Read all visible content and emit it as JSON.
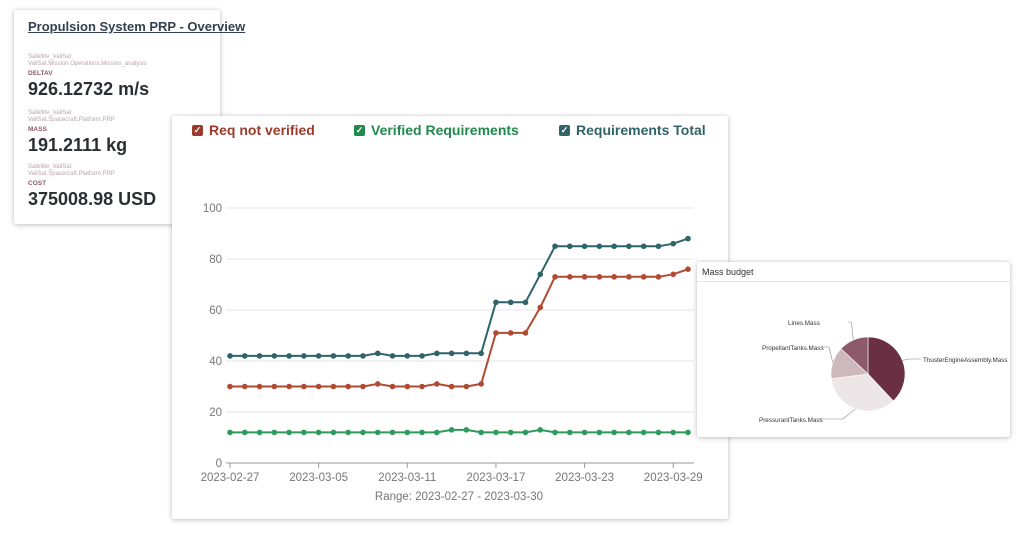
{
  "overview": {
    "title": "Propulsion System PRP - Overview",
    "metrics": [
      {
        "path1": "Satellite_ValiSat",
        "path2": "ValiSat.Mission Operations.Mission_analysis",
        "label": "DELTAV",
        "value": "926.12732 m/s"
      },
      {
        "path1": "Satellite_ValiSat",
        "path2": "ValiSat.Spacecraft.Platform.PRP",
        "label": "MASS",
        "value": "191.2111 kg"
      },
      {
        "path1": "Satellite_ValiSat",
        "path2": "ValiSat.Spacecraft.Platform.PRP",
        "label": "COST",
        "value": "375008.98 USD"
      }
    ]
  },
  "legend": [
    {
      "label": "Req not verified",
      "color": "#9b3b2b",
      "checked": true
    },
    {
      "label": "Verified Requirements",
      "color": "#1f8a4c",
      "checked": true
    },
    {
      "label": "Requirements Total",
      "color": "#2f6468",
      "checked": true
    }
  ],
  "chart_data": [
    {
      "type": "line",
      "x": [
        "2023-02-27",
        "2023-02-28",
        "2023-03-01",
        "2023-03-02",
        "2023-03-03",
        "2023-03-04",
        "2023-03-05",
        "2023-03-06",
        "2023-03-07",
        "2023-03-08",
        "2023-03-09",
        "2023-03-10",
        "2023-03-11",
        "2023-03-12",
        "2023-03-13",
        "2023-03-14",
        "2023-03-15",
        "2023-03-16",
        "2023-03-17",
        "2023-03-18",
        "2023-03-19",
        "2023-03-20",
        "2023-03-21",
        "2023-03-22",
        "2023-03-23",
        "2023-03-24",
        "2023-03-25",
        "2023-03-26",
        "2023-03-27",
        "2023-03-28",
        "2023-03-29",
        "2023-03-30"
      ],
      "series": [
        {
          "name": "Requirements Total",
          "color": "#2f6468",
          "values": [
            42,
            42,
            42,
            42,
            42,
            42,
            42,
            42,
            42,
            42,
            43,
            42,
            42,
            42,
            43,
            43,
            43,
            43,
            63,
            63,
            63,
            74,
            85,
            85,
            85,
            85,
            85,
            85,
            85,
            85,
            86,
            88
          ]
        },
        {
          "name": "Req not verified",
          "color": "#b04a33",
          "values": [
            30,
            30,
            30,
            30,
            30,
            30,
            30,
            30,
            30,
            30,
            31,
            30,
            30,
            30,
            31,
            30,
            30,
            31,
            51,
            51,
            51,
            61,
            73,
            73,
            73,
            73,
            73,
            73,
            73,
            73,
            74,
            76
          ]
        },
        {
          "name": "Verified Requirements",
          "color": "#2e9a5c",
          "values": [
            12,
            12,
            12,
            12,
            12,
            12,
            12,
            12,
            12,
            12,
            12,
            12,
            12,
            12,
            12,
            13,
            13,
            12,
            12,
            12,
            12,
            13,
            12,
            12,
            12,
            12,
            12,
            12,
            12,
            12,
            12,
            12
          ]
        }
      ],
      "ylim": [
        0,
        100
      ],
      "yticks": [
        0,
        20,
        40,
        60,
        80,
        100
      ],
      "xticks": [
        "2023-02-27",
        "2023-03-05",
        "2023-03-11",
        "2023-03-17",
        "2023-03-23",
        "2023-03-29"
      ],
      "xlabel": "Range: 2023-02-27 - 2023-03-30",
      "grid": true
    },
    {
      "type": "pie",
      "title": "Mass budget",
      "slices": [
        {
          "label": "ThusterEngineAssembly.Mass",
          "value": 38,
          "color": "#6b2f43"
        },
        {
          "label": "PressurantTanks.Mass",
          "value": 35,
          "color": "#ede6e8"
        },
        {
          "label": "PropellantTanks.Mass",
          "value": 14,
          "color": "#cdb8be"
        },
        {
          "label": "Lines.Mass",
          "value": 13,
          "color": "#8c5a6a"
        }
      ]
    }
  ]
}
